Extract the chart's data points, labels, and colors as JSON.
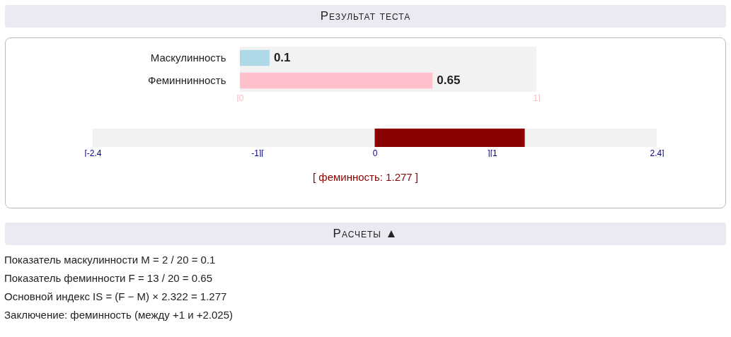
{
  "chart_data": [
    {
      "type": "bar",
      "title": "Результат теста",
      "orientation": "horizontal",
      "categories": [
        "Маскулинность",
        "Феминнинность"
      ],
      "values": [
        0.1,
        0.65
      ],
      "colors": [
        "#add8e6",
        "#ffc0cb"
      ],
      "xlim": [
        0,
        1
      ],
      "xticks": [
        {
          "value": 0,
          "label": "[0"
        },
        {
          "value": 1,
          "label": "1]"
        }
      ],
      "data_labels": true
    },
    {
      "type": "bar",
      "orientation": "horizontal",
      "categories": [
        null
      ],
      "values": [
        1.277
      ],
      "base": [
        0
      ],
      "colors": [
        "#8b0000"
      ],
      "xlim": [
        -2.4,
        2.4
      ],
      "xticks": [
        {
          "value": -2.4,
          "label": "[-2.4"
        },
        {
          "value": -1,
          "label": "-1]["
        },
        {
          "value": 0,
          "label": "0"
        },
        {
          "value": 1,
          "label": "][1"
        },
        {
          "value": 2.4,
          "label": "2.4]"
        }
      ],
      "annotations": [
        "[ феминность: 1.277 ]",
        "Расчеты ▲",
        "Показатель маскулинности M = 2 / 20 = 0.1",
        "Показатель феминности F = 13 / 20 = 0.65",
        "Основной индекс IS = (F − M) × 2.322 = 1.277",
        "Заключение: феминность (между +1 и +2.025)"
      ]
    }
  ]
}
